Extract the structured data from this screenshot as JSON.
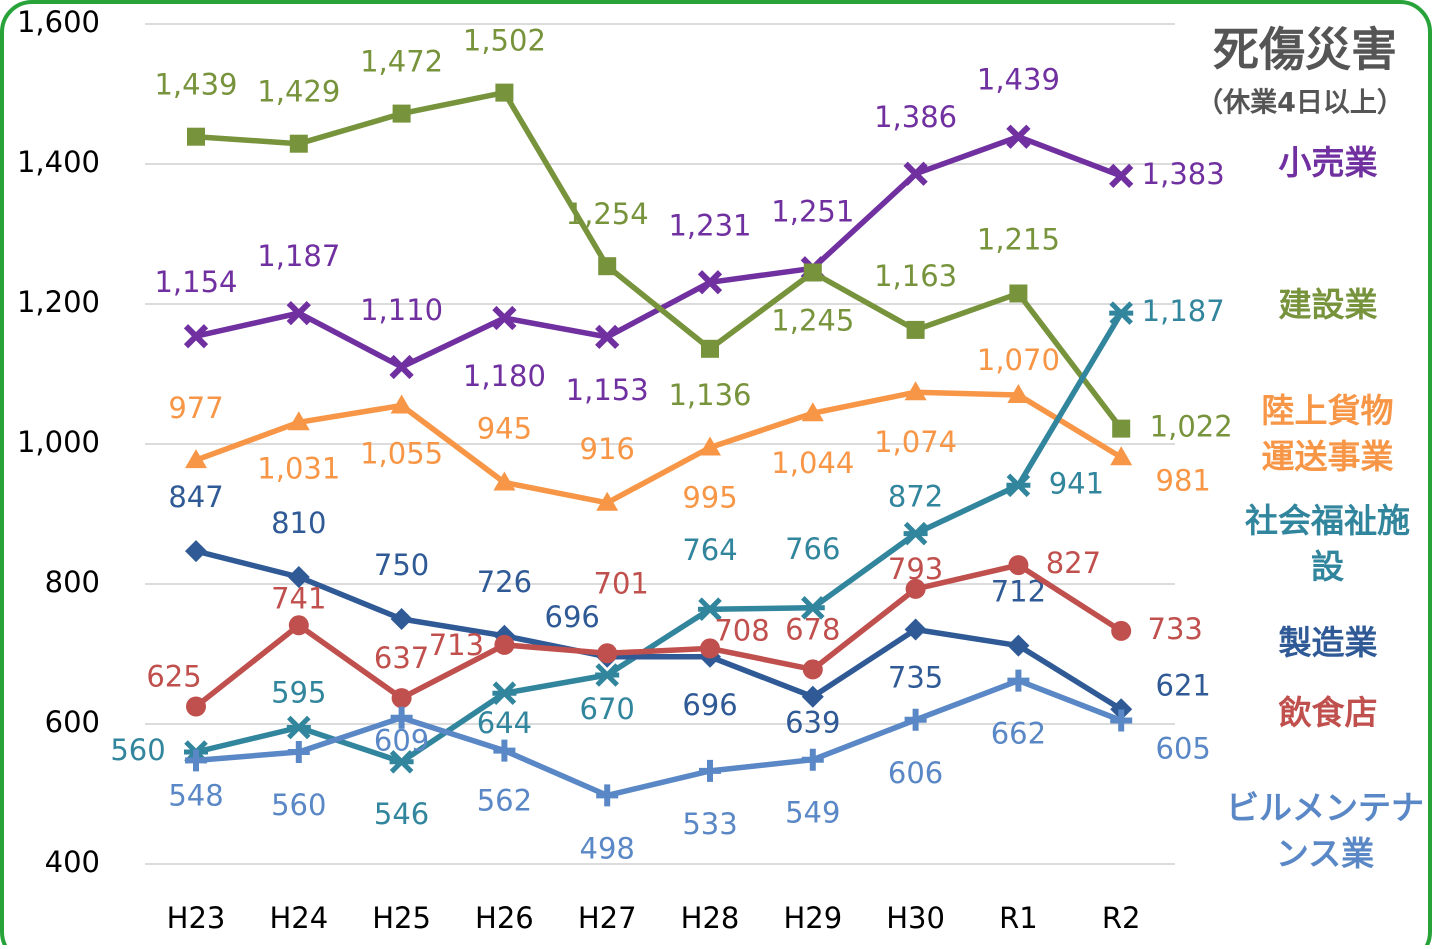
{
  "chart_data": {
    "type": "line",
    "title": "死傷災害",
    "subtitle": "（休業4日以上）",
    "categories": [
      "H23",
      "H24",
      "H25",
      "H26",
      "H27",
      "H28",
      "H29",
      "H30",
      "R1",
      "R2"
    ],
    "ylim": [
      400,
      1600
    ],
    "yticks": [
      {
        "value": 1600,
        "label": "1,600"
      },
      {
        "value": 1400,
        "label": "1,400"
      },
      {
        "value": 1200,
        "label": "1,200"
      },
      {
        "value": 1000,
        "label": "1,000"
      },
      800,
      600,
      400
    ],
    "grid": true,
    "series": [
      {
        "name": "小売業",
        "color": "#7030a0",
        "marker": "x",
        "values": [
          1154,
          1187,
          1110,
          1180,
          1153,
          1231,
          1251,
          1386,
          1439,
          1383
        ],
        "value_labels": [
          "1,154",
          "1,187",
          "1,110",
          "1,180",
          "1,153",
          "1,231",
          "1,251",
          "1,386",
          "1,439",
          "1,383"
        ]
      },
      {
        "name": "建設業",
        "color": "#77933c",
        "marker": "square",
        "values": [
          1439,
          1429,
          1472,
          1502,
          1254,
          1136,
          1245,
          1163,
          1215,
          1022
        ],
        "value_labels": [
          "1,439",
          "1,429",
          "1,472",
          "1,502",
          "1,254",
          "1,136",
          "1,245",
          "1,163",
          "1,215",
          "1,022"
        ]
      },
      {
        "name": "陸上貨物運送事業",
        "color": "#f79646",
        "marker": "triangle",
        "values": [
          977,
          1031,
          1055,
          945,
          916,
          995,
          1044,
          1074,
          1070,
          981
        ],
        "value_labels": [
          "977",
          "1,031",
          "1,055",
          "945",
          "916",
          "995",
          "1,044",
          "1,074",
          "1,070",
          "981"
        ]
      },
      {
        "name": "社会福祉施設",
        "color": "#31859c",
        "marker": "star",
        "values": [
          560,
          595,
          546,
          644,
          670,
          764,
          766,
          872,
          941,
          1187
        ],
        "value_labels": [
          "560",
          "595",
          "546",
          "644",
          "670",
          "764",
          "766",
          "872",
          "941",
          "1,187"
        ]
      },
      {
        "name": "製造業",
        "color": "#2f5a96",
        "marker": "diamond",
        "values": [
          847,
          810,
          750,
          726,
          696,
          696,
          639,
          735,
          712,
          621
        ]
      },
      {
        "name": "飲食店",
        "color": "#c0504d",
        "marker": "circle",
        "values": [
          625,
          741,
          637,
          713,
          701,
          708,
          678,
          793,
          827,
          733
        ]
      },
      {
        "name": "ビルメンテナンス業",
        "color": "#5a87c5",
        "marker": "plus",
        "values": [
          548,
          560,
          609,
          562,
          498,
          533,
          549,
          606,
          662,
          605
        ]
      }
    ]
  }
}
